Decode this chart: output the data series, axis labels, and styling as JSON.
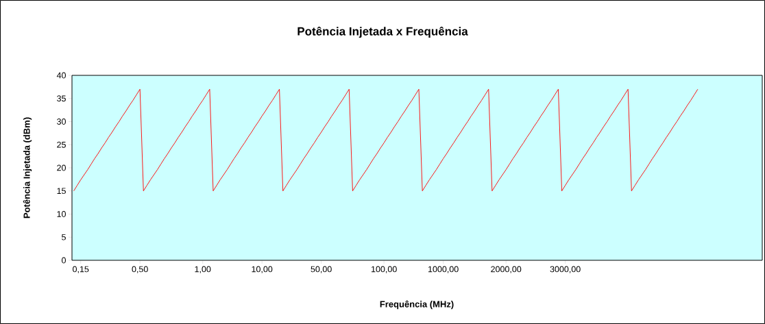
{
  "chart_data": {
    "type": "line",
    "title": "Potência Injetada x Frequência",
    "xlabel": "Frequência (MHz)",
    "ylabel": "Potência Injetada (dBm)",
    "categories": [
      null,
      null,
      "0,15",
      null,
      null,
      null,
      null,
      null,
      null,
      null,
      null,
      null,
      null,
      null,
      null,
      null,
      null,
      null,
      null,
      "0,50",
      null,
      null,
      null,
      null,
      null,
      null,
      null,
      null,
      null,
      null,
      null,
      null,
      null,
      null,
      null,
      null,
      null,
      "1,00",
      null,
      null,
      null,
      null,
      null,
      null,
      null,
      null,
      null,
      null,
      null,
      null,
      null,
      null,
      null,
      null,
      "10,00",
      null,
      null,
      null,
      null,
      null,
      null,
      null,
      null,
      null,
      null,
      null,
      null,
      null,
      null,
      null,
      null,
      "50,00",
      null,
      null,
      null,
      null,
      null,
      null,
      null,
      null,
      null,
      null,
      null,
      null,
      null,
      null,
      null,
      null,
      null,
      "100,00",
      null,
      null,
      null,
      null,
      null,
      null,
      null,
      null,
      null,
      null,
      null,
      null,
      null,
      null,
      null,
      null,
      "1000,00",
      null,
      null,
      null,
      null,
      null,
      null,
      null,
      null,
      null,
      null,
      null,
      null,
      null,
      null,
      null,
      null,
      null,
      "2000,00",
      null,
      null,
      null,
      null,
      null,
      null,
      null,
      null,
      null,
      null,
      null,
      null,
      null,
      null,
      null,
      null,
      "3000,00",
      null,
      null,
      null,
      null,
      null,
      null,
      null,
      null,
      null,
      null,
      null,
      null,
      null,
      null,
      null,
      null,
      null,
      null,
      null,
      null,
      null,
      null,
      null,
      null,
      null,
      null,
      null,
      null,
      null,
      null,
      null,
      null,
      null,
      null,
      null,
      null,
      null,
      null,
      null,
      null,
      null,
      null,
      null,
      null,
      null,
      null,
      null,
      null,
      null,
      null,
      null,
      null,
      null,
      null,
      null,
      null
    ],
    "series": [
      {
        "color": "#ff0000",
        "values": [
          15,
          16.2,
          17.4,
          18.5,
          19.6,
          20.8,
          22,
          23.1,
          24.3,
          25.4,
          26.6,
          27.7,
          28.9,
          30,
          31.2,
          32.3,
          33.5,
          34.6,
          35.8,
          37,
          15,
          16.2,
          17.4,
          18.5,
          19.6,
          20.8,
          22,
          23.1,
          24.3,
          25.4,
          26.6,
          27.7,
          28.9,
          30,
          31.2,
          32.3,
          33.5,
          34.6,
          35.8,
          37,
          15,
          16.2,
          17.4,
          18.5,
          19.6,
          20.8,
          22,
          23.1,
          24.3,
          25.4,
          26.6,
          27.7,
          28.9,
          30,
          31.2,
          32.3,
          33.5,
          34.6,
          35.8,
          37,
          15,
          16.2,
          17.4,
          18.5,
          19.6,
          20.8,
          22,
          23.1,
          24.3,
          25.4,
          26.6,
          27.7,
          28.9,
          30,
          31.2,
          32.3,
          33.5,
          34.6,
          35.8,
          37,
          15,
          16.2,
          17.4,
          18.5,
          19.6,
          20.8,
          22,
          23.1,
          24.3,
          25.4,
          26.6,
          27.7,
          28.9,
          30,
          31.2,
          32.3,
          33.5,
          34.6,
          35.8,
          37,
          15,
          16.2,
          17.4,
          18.5,
          19.6,
          20.8,
          22,
          23.1,
          24.3,
          25.4,
          26.6,
          27.7,
          28.9,
          30,
          31.2,
          32.3,
          33.5,
          34.6,
          35.8,
          37,
          15,
          16.2,
          17.4,
          18.5,
          19.6,
          20.8,
          22,
          23.1,
          24.3,
          25.4,
          26.6,
          27.7,
          28.9,
          30,
          31.2,
          32.3,
          33.5,
          34.6,
          35.8,
          37,
          15,
          16.2,
          17.4,
          18.5,
          19.6,
          20.8,
          22,
          23.1,
          24.3,
          25.4,
          26.6,
          27.7,
          28.9,
          30,
          31.2,
          32.3,
          33.5,
          34.6,
          35.8,
          37,
          15,
          16.2,
          17.4,
          18.5,
          19.6,
          20.8,
          22,
          23.1,
          24.3,
          25.4,
          26.6,
          27.7,
          28.9,
          30,
          31.2,
          32.3,
          33.5,
          34.6,
          35.8,
          37,
          null,
          null,
          null,
          null,
          null,
          null,
          null,
          null,
          null,
          null,
          null,
          null,
          null,
          null,
          null,
          null,
          null,
          null
        ]
      }
    ],
    "ylim": [
      0,
      40
    ],
    "yticks": [
      0,
      5,
      10,
      15,
      20,
      25,
      30,
      35,
      40
    ]
  }
}
